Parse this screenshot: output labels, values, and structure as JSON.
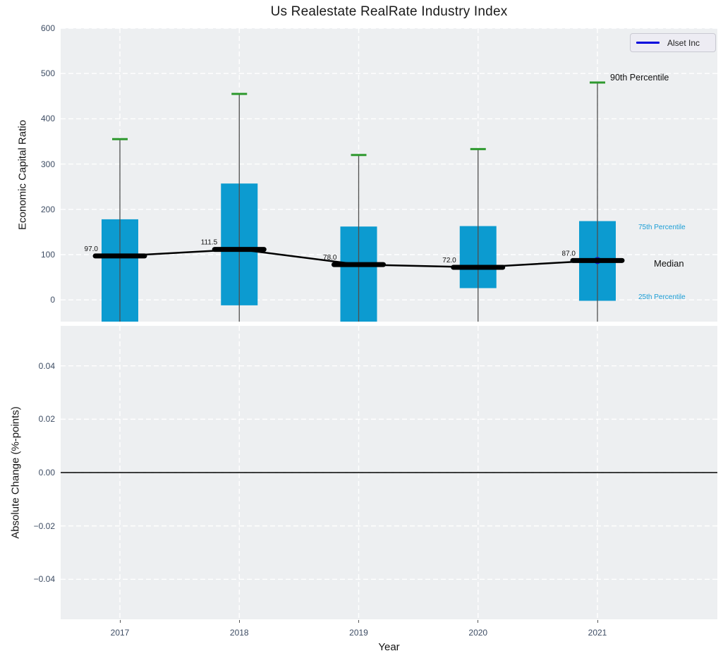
{
  "title": "Us Realestate RealRate Industry Index",
  "legend": {
    "label": "Alset Inc"
  },
  "colors": {
    "figure_background": "#ffffff",
    "plot_background": "#edeff1",
    "grid": "#ffffff",
    "bar": "#0c9bd0",
    "green_cap": "#2e992e",
    "whisker": "#4f4f4f",
    "median": "#000000",
    "alset_marker": "#1515cc",
    "legend_line": "#0000dd",
    "percentile_blue": "#1b9ed6",
    "tick_text": "#3d4c63",
    "zero_line": "#000000"
  },
  "chart_data": [
    {
      "type": "boxplot",
      "title": "Us Realestate RealRate Industry Index",
      "ylabel": "Economic Capital Ratio",
      "categories": [
        "2017",
        "2018",
        "2019",
        "2020",
        "2021"
      ],
      "yticks": [
        0,
        100,
        200,
        300,
        400,
        500,
        600
      ],
      "ylim": [
        -48,
        600
      ],
      "grid": "white-dashed",
      "legend_position": "upper-right",
      "p90": [
        355,
        455,
        320,
        333,
        480
      ],
      "p75": [
        178,
        257,
        162,
        163,
        174
      ],
      "median": [
        97,
        111.5,
        78,
        72,
        87
      ],
      "median_labels": [
        "97.0",
        "111.5",
        "78.0",
        "72.0",
        "87.0"
      ],
      "p25": [
        -60,
        -12,
        -60,
        26,
        -2
      ],
      "p25_clipped_below_axis": [
        true,
        false,
        true,
        false,
        false
      ],
      "whiskers_extend_below_axis": true,
      "alset_point": {
        "category": "2021",
        "value": 87
      },
      "annotations": {
        "p90": "90th Percentile",
        "p75": "75th Percentile",
        "median": "Median",
        "p25": "25th Percentile"
      }
    },
    {
      "type": "line",
      "ylabel": "Absolute Change (%-points)",
      "xlabel": "Year",
      "categories": [
        "2017",
        "2018",
        "2019",
        "2020",
        "2021"
      ],
      "yticks": [
        0.04,
        0.02,
        0,
        -0.02,
        -0.04
      ],
      "ytick_labels": [
        "0.04",
        "0.02",
        "0.00",
        "−0.02",
        "−0.04"
      ],
      "ylim": [
        -0.055,
        0.055
      ],
      "zero_line": 0,
      "series": []
    }
  ]
}
